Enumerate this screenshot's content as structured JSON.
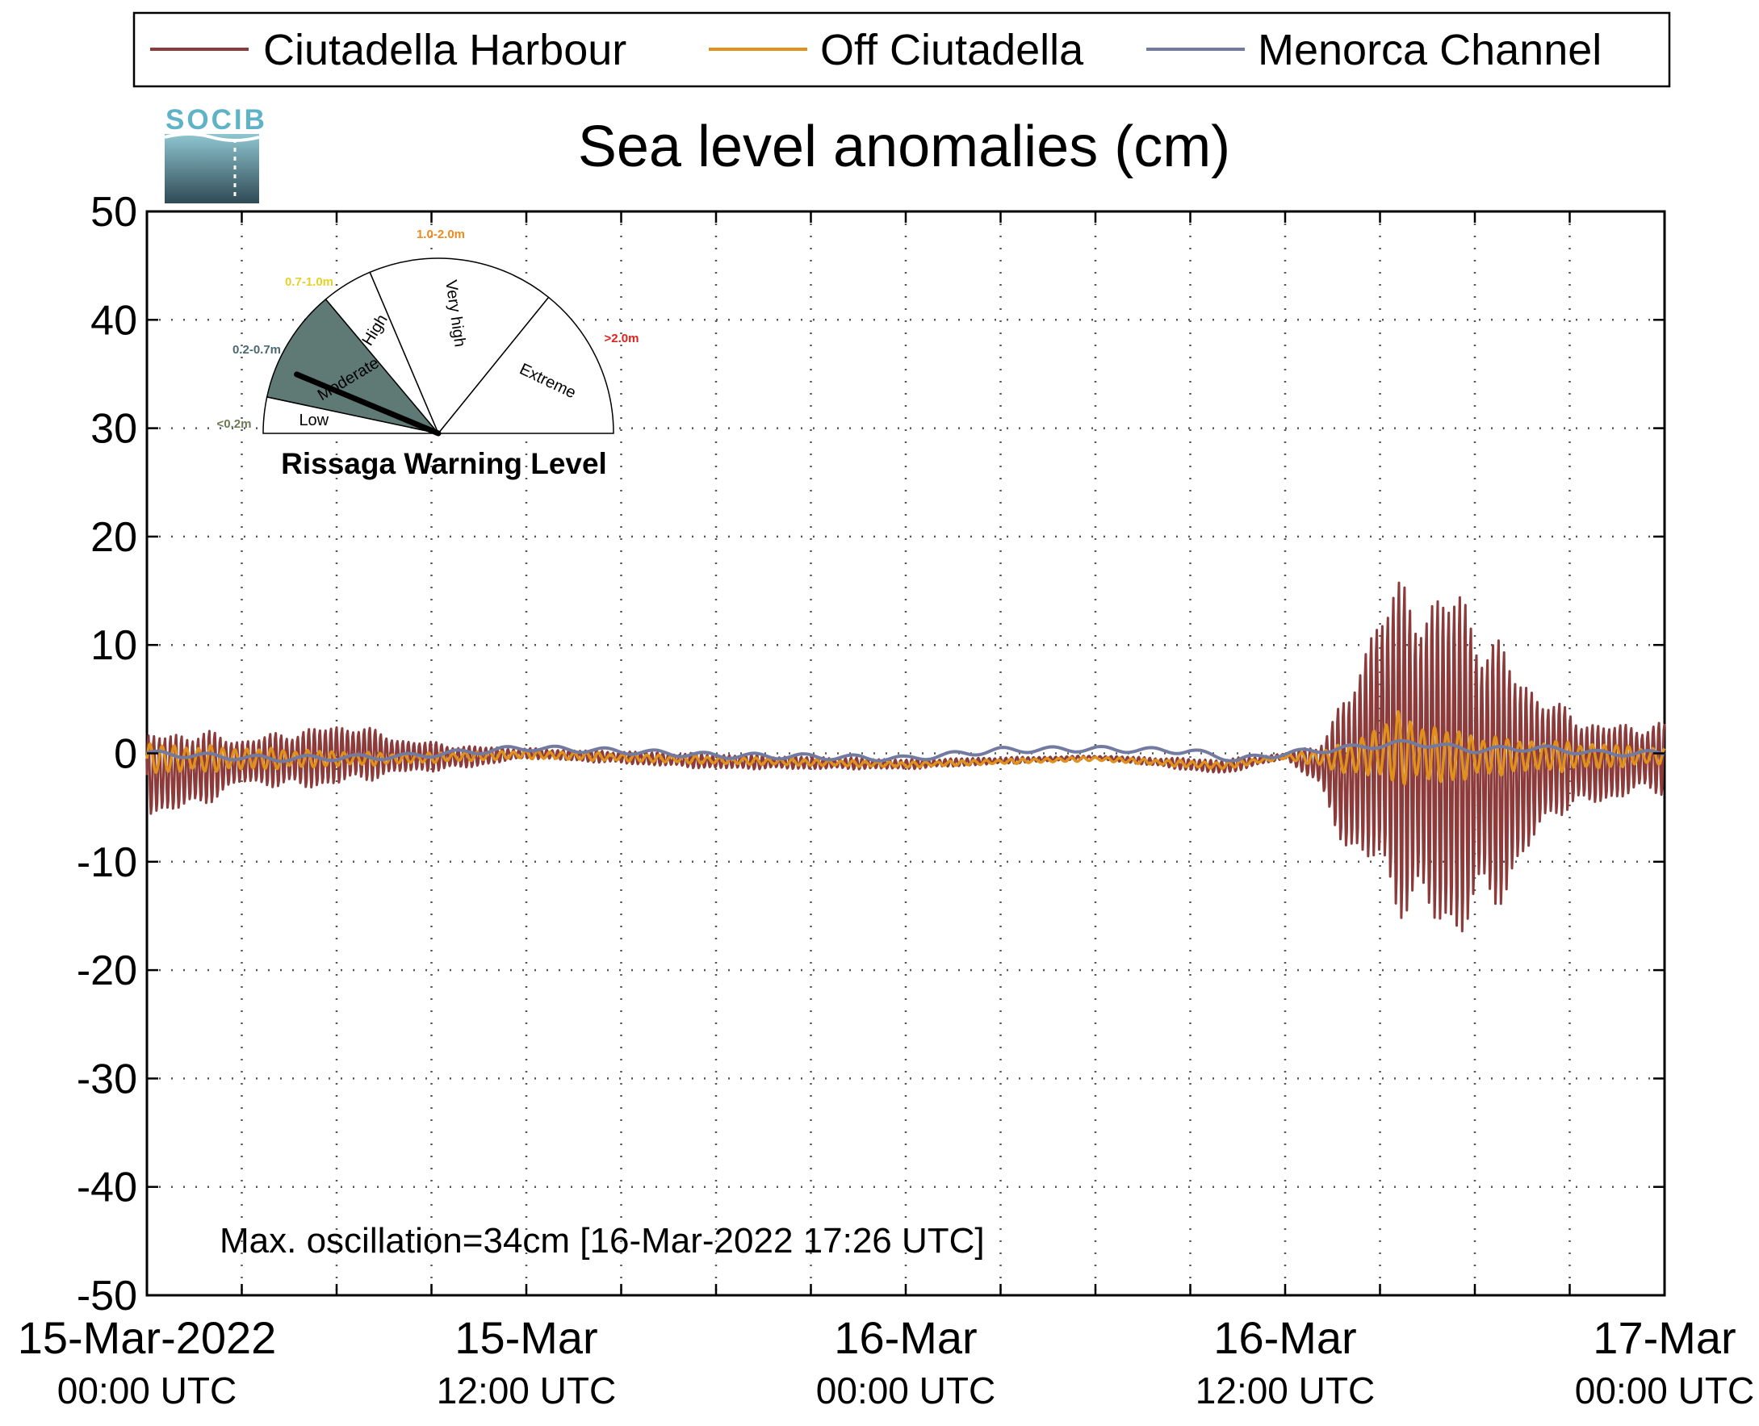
{
  "chart_data": {
    "type": "line",
    "title": "Sea level anomalies (cm)",
    "xlabel": "",
    "ylabel": "",
    "ylim": [
      -50,
      50
    ],
    "yticks": [
      -50,
      -40,
      -30,
      -20,
      -10,
      0,
      10,
      20,
      30,
      40,
      50
    ],
    "xlim": [
      "2022-03-15 00:00",
      "2022-03-17 00:00"
    ],
    "x_tick_labels": [
      {
        "x": "2022-03-15 00:00",
        "line1": "15-Mar-2022",
        "line2": "00:00 UTC"
      },
      {
        "x": "2022-03-15 12:00",
        "line1": "15-Mar",
        "line2": "12:00 UTC"
      },
      {
        "x": "2022-03-16 00:00",
        "line1": "16-Mar",
        "line2": "00:00 UTC"
      },
      {
        "x": "2022-03-16 12:00",
        "line1": "16-Mar",
        "line2": "12:00 UTC"
      },
      {
        "x": "2022-03-17 00:00",
        "line1": "17-Mar",
        "line2": "00:00 UTC"
      }
    ],
    "x_minor_ticks": [
      "2022-03-15 03:00",
      "2022-03-15 06:00",
      "2022-03-15 09:00",
      "2022-03-15 15:00",
      "2022-03-15 18:00",
      "2022-03-15 21:00",
      "2022-03-16 03:00",
      "2022-03-16 06:00",
      "2022-03-16 09:00",
      "2022-03-16 15:00",
      "2022-03-16 18:00",
      "2022-03-16 21:00"
    ],
    "grid": true,
    "legend_position": "top",
    "series": [
      {
        "name": "Ciutadella Harbour",
        "color": "#8c3a3a",
        "envelope": {
          "x": [
            "2022-03-15 00:00",
            "2022-03-15 01:30",
            "2022-03-15 03:00",
            "2022-03-15 05:00",
            "2022-03-15 06:30",
            "2022-03-15 08:00",
            "2022-03-15 10:00",
            "2022-03-15 12:00",
            "2022-03-15 18:00",
            "2022-03-16 00:00",
            "2022-03-16 06:00",
            "2022-03-16 10:00",
            "2022-03-16 12:00",
            "2022-03-16 13:00",
            "2022-03-16 14:00",
            "2022-03-16 15:00",
            "2022-03-16 16:00",
            "2022-03-16 17:30",
            "2022-03-16 19:00",
            "2022-03-16 20:30",
            "2022-03-16 22:00",
            "2022-03-16 23:00",
            "2022-03-17 00:00"
          ],
          "upper": [
            2,
            2.5,
            1.5,
            2.5,
            3,
            1.5,
            0.8,
            0.5,
            0,
            -0.5,
            -0.2,
            -0.5,
            0,
            1,
            6,
            16,
            16.5,
            16.5,
            10,
            5,
            3,
            3,
            3
          ],
          "lower": [
            -6,
            -5.5,
            -3,
            -3.5,
            -3,
            -2,
            -1.5,
            -0.5,
            -1.5,
            -1.5,
            -0.5,
            -2,
            -0.5,
            -3,
            -10,
            -13,
            -17,
            -18.5,
            -14,
            -6,
            -5,
            -4,
            -4
          ]
        }
      },
      {
        "name": "Off Ciutadella",
        "color": "#e0901c",
        "envelope": {
          "x": [
            "2022-03-15 00:00",
            "2022-03-15 04:00",
            "2022-03-15 08:00",
            "2022-03-15 12:00",
            "2022-03-15 18:00",
            "2022-03-16 00:00",
            "2022-03-16 06:00",
            "2022-03-16 10:00",
            "2022-03-16 12:00",
            "2022-03-16 14:00",
            "2022-03-16 15:30",
            "2022-03-16 17:00",
            "2022-03-16 19:00",
            "2022-03-16 22:00",
            "2022-03-17 00:00"
          ],
          "upper": [
            1,
            0.5,
            0,
            0.3,
            -0.3,
            -0.8,
            -0.3,
            -0.8,
            -0.2,
            1,
            4,
            2.5,
            1.5,
            1,
            0.5
          ],
          "lower": [
            -2,
            -1.5,
            -1,
            -0.5,
            -1,
            -1.3,
            -0.7,
            -1.5,
            -0.5,
            -2,
            -3,
            -3,
            -2,
            -1.5,
            -1
          ]
        }
      },
      {
        "name": "Menorca Channel",
        "color": "#737aa0",
        "points": {
          "x": [
            "2022-03-15 00:00",
            "2022-03-15 04:00",
            "2022-03-15 08:00",
            "2022-03-15 12:00",
            "2022-03-15 15:00",
            "2022-03-15 18:00",
            "2022-03-15 21:00",
            "2022-03-16 00:00",
            "2022-03-16 03:00",
            "2022-03-16 06:00",
            "2022-03-16 09:00",
            "2022-03-16 10:30",
            "2022-03-16 12:00",
            "2022-03-16 14:00",
            "2022-03-16 16:00",
            "2022-03-16 18:00",
            "2022-03-16 20:00",
            "2022-03-16 22:00",
            "2022-03-17 00:00"
          ],
          "y": [
            0,
            -0.5,
            -0.3,
            0.5,
            0.2,
            -0.2,
            -0.3,
            -0.5,
            0.3,
            0.4,
            0.2,
            -0.6,
            0,
            0.5,
            1,
            0.3,
            0.5,
            0,
            0
          ]
        }
      }
    ],
    "annotation": "Max. oscillation=34cm [16-Mar-2022 17:26 UTC]",
    "annotation_color": "#8c3a3a"
  },
  "logo": {
    "text": "SOCIB"
  },
  "gauge": {
    "title": "Rissaga Warning Level",
    "current_level": "Moderate",
    "needle_value_cm": 34,
    "sectors": [
      {
        "name": "Low",
        "range": "<0.2m",
        "range_color": "#6b7a55",
        "fill": "#ffffff"
      },
      {
        "name": "Moderate",
        "range": "0.2-0.7m",
        "range_color": "#4a6a72",
        "fill": "#5f7a75"
      },
      {
        "name": "High",
        "range": "0.7-1.0m",
        "range_color": "#e8d02a",
        "fill": "#ffffff"
      },
      {
        "name": "Very high",
        "range": "1.0-2.0m",
        "range_color": "#ef8a1e",
        "fill": "#ffffff"
      },
      {
        "name": "Extreme",
        "range": ">2.0m",
        "range_color": "#e0201a",
        "fill": "#ffffff"
      }
    ]
  }
}
